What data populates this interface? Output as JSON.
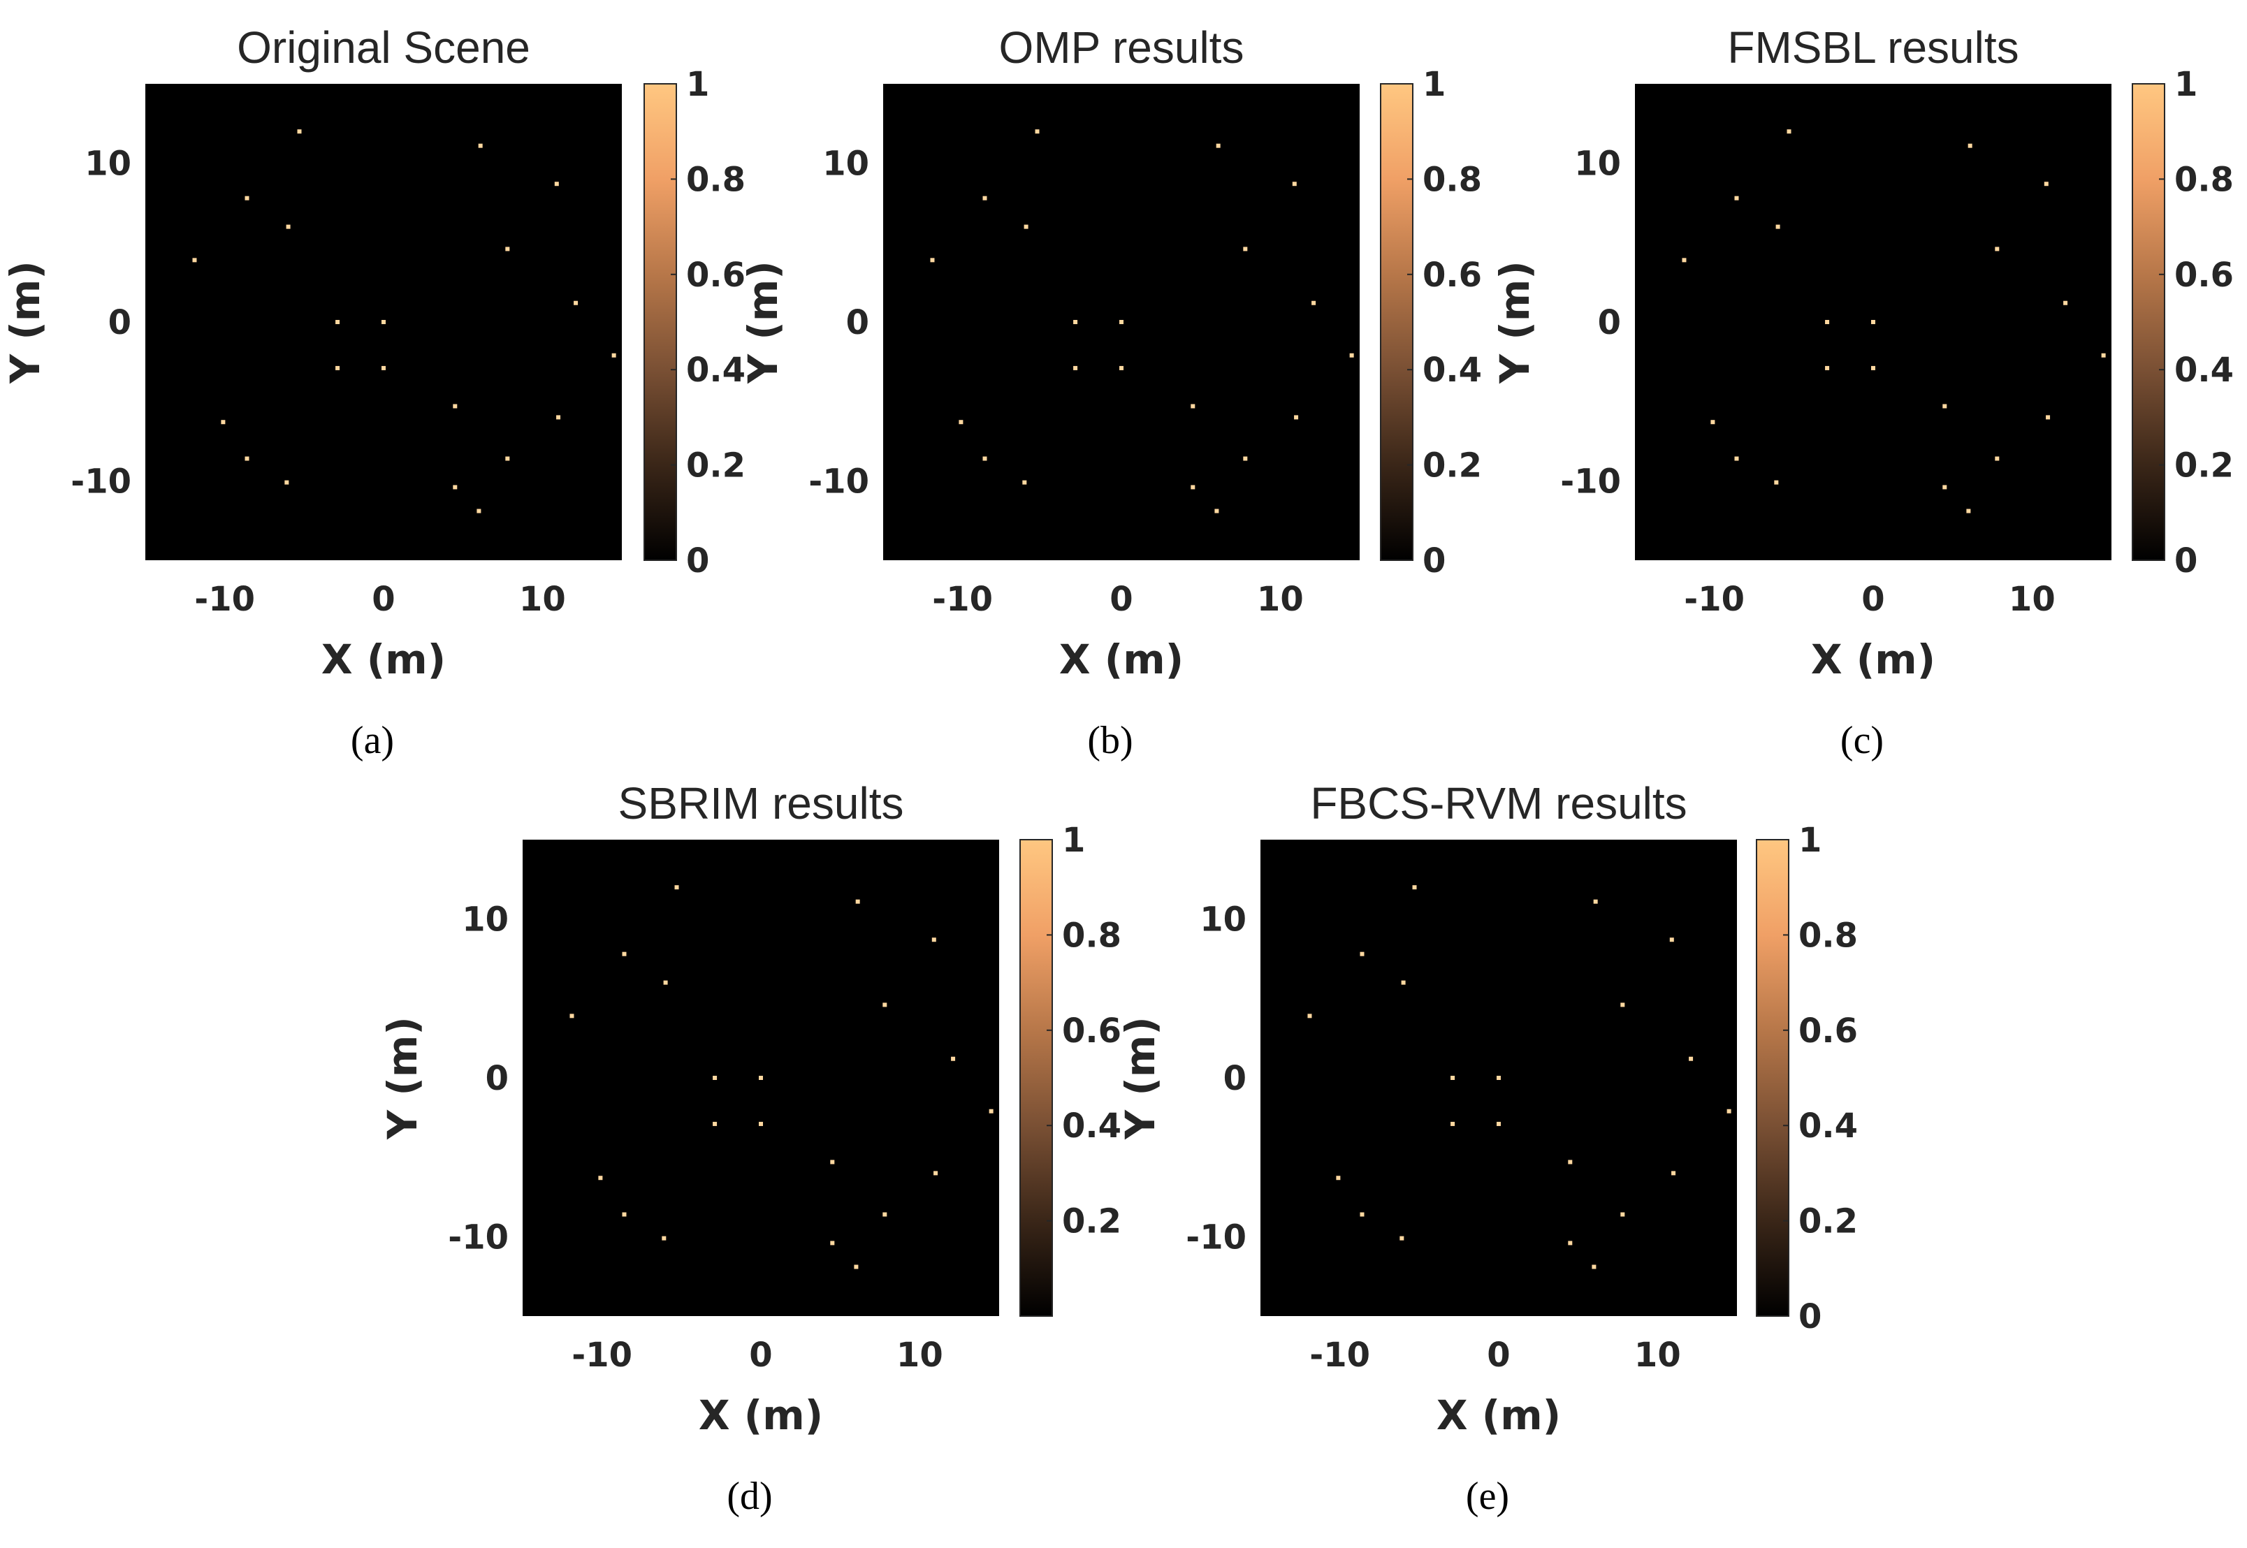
{
  "chart_data": [
    {
      "type": "scatter",
      "panel": "(a)",
      "title": "Original Scene",
      "xlabel": "X (m)",
      "ylabel": "Y (m)",
      "xlim": [
        -15,
        15
      ],
      "ylim": [
        -15,
        15
      ],
      "xticks": [
        "-10",
        "0",
        "10"
      ],
      "yticks": [
        "10",
        "0",
        "-10"
      ],
      "colorbar": {
        "ticks": [
          "1",
          "0.8",
          "0.6",
          "0.4",
          "0.2",
          "0"
        ],
        "range": [
          0,
          1
        ]
      },
      "x": [
        -5.3,
        6.1,
        -8.6,
        10.9,
        -6,
        7.8,
        -11.9,
        12.1,
        -2.9,
        0,
        14.5,
        -2.9,
        0,
        4.5,
        11,
        -10.1,
        -8.6,
        7.8,
        -6.1,
        4.5,
        6
      ],
      "y": [
        12,
        11.1,
        7.8,
        8.7,
        6,
        4.6,
        3.9,
        1.2,
        0,
        0,
        -2.1,
        -2.9,
        -2.9,
        -5.3,
        -6,
        -6.3,
        -8.6,
        -8.6,
        -10.1,
        -10.4,
        -11.9
      ],
      "values": [
        1,
        1,
        1,
        1,
        1,
        1,
        1,
        1,
        1,
        1,
        1,
        1,
        1,
        1,
        1,
        1,
        1,
        1,
        1,
        1,
        1
      ]
    },
    {
      "type": "scatter",
      "panel": "(b)",
      "title": "OMP results",
      "xlabel": "X (m)",
      "ylabel": "Y (m)",
      "xlim": [
        -15,
        15
      ],
      "ylim": [
        -15,
        15
      ],
      "xticks": [
        "-10",
        "0",
        "10"
      ],
      "yticks": [
        "10",
        "0",
        "-10"
      ],
      "colorbar": {
        "ticks": [
          "1",
          "0.8",
          "0.6",
          "0.4",
          "0.2",
          "0"
        ],
        "range": [
          0,
          1
        ]
      },
      "x": [
        -5.3,
        6.1,
        -8.6,
        10.9,
        -6,
        7.8,
        -11.9,
        12.1,
        -2.9,
        0,
        14.5,
        -2.9,
        0,
        4.5,
        11,
        -10.1,
        -8.6,
        7.8,
        -6.1,
        4.5,
        6
      ],
      "y": [
        12,
        11.1,
        7.8,
        8.7,
        6,
        4.6,
        3.9,
        1.2,
        0,
        0,
        -2.1,
        -2.9,
        -2.9,
        -5.3,
        -6,
        -6.3,
        -8.6,
        -8.6,
        -10.1,
        -10.4,
        -11.9
      ],
      "values": [
        1,
        1,
        1,
        1,
        1,
        1,
        1,
        1,
        1,
        1,
        1,
        1,
        1,
        1,
        1,
        1,
        1,
        1,
        1,
        1,
        1
      ]
    },
    {
      "type": "scatter",
      "panel": "(c)",
      "title": "FMSBL results",
      "xlabel": "X (m)",
      "ylabel": "Y (m)",
      "xlim": [
        -15,
        15
      ],
      "ylim": [
        -15,
        15
      ],
      "xticks": [
        "-10",
        "0",
        "10"
      ],
      "yticks": [
        "10",
        "0",
        "-10"
      ],
      "colorbar": {
        "ticks": [
          "1",
          "0.8",
          "0.6",
          "0.4",
          "0.2",
          "0"
        ],
        "range": [
          0,
          1
        ]
      },
      "x": [
        -5.3,
        6.1,
        -8.6,
        10.9,
        -6,
        7.8,
        -11.9,
        12.1,
        -2.9,
        0,
        14.5,
        -2.9,
        0,
        4.5,
        11,
        -10.1,
        -8.6,
        7.8,
        -6.1,
        4.5,
        6
      ],
      "y": [
        12,
        11.1,
        7.8,
        8.7,
        6,
        4.6,
        3.9,
        1.2,
        0,
        0,
        -2.1,
        -2.9,
        -2.9,
        -5.3,
        -6,
        -6.3,
        -8.6,
        -8.6,
        -10.1,
        -10.4,
        -11.9
      ],
      "values": [
        1,
        1,
        1,
        1,
        1,
        1,
        1,
        1,
        1,
        1,
        1,
        1,
        1,
        1,
        1,
        1,
        1,
        1,
        1,
        1,
        1
      ]
    },
    {
      "type": "scatter",
      "panel": "(d)",
      "title": "SBRIM results",
      "xlabel": "X (m)",
      "ylabel": "Y (m)",
      "xlim": [
        -15,
        15
      ],
      "ylim": [
        -15,
        15
      ],
      "xticks": [
        "-10",
        "0",
        "10"
      ],
      "yticks": [
        "10",
        "0",
        "-10"
      ],
      "colorbar": {
        "ticks": [
          "1",
          "0.8",
          "0.6",
          "0.4",
          "0.2"
        ],
        "range": [
          0,
          1
        ]
      },
      "x": [
        -5.3,
        6.1,
        -8.6,
        10.9,
        -6,
        7.8,
        -11.9,
        12.1,
        -2.9,
        0,
        14.5,
        -2.9,
        0,
        4.5,
        11,
        -10.1,
        -8.6,
        7.8,
        -6.1,
        4.5,
        6
      ],
      "y": [
        12,
        11.1,
        7.8,
        8.7,
        6,
        4.6,
        3.9,
        1.2,
        0,
        0,
        -2.1,
        -2.9,
        -2.9,
        -5.3,
        -6,
        -6.3,
        -8.6,
        -8.6,
        -10.1,
        -10.4,
        -11.9
      ],
      "values": [
        1,
        1,
        1,
        1,
        1,
        1,
        1,
        1,
        1,
        1,
        1,
        1,
        1,
        1,
        1,
        1,
        1,
        1,
        1,
        1,
        1
      ]
    },
    {
      "type": "scatter",
      "panel": "(e)",
      "title": "FBCS-RVM results",
      "xlabel": "X (m)",
      "ylabel": "Y (m)",
      "xlim": [
        -15,
        15
      ],
      "ylim": [
        -15,
        15
      ],
      "xticks": [
        "-10",
        "0",
        "10"
      ],
      "yticks": [
        "10",
        "0",
        "-10"
      ],
      "colorbar": {
        "ticks": [
          "1",
          "0.8",
          "0.6",
          "0.4",
          "0.2",
          "0"
        ],
        "range": [
          0,
          1
        ]
      },
      "x": [
        -5.3,
        6.1,
        -8.6,
        10.9,
        -6,
        7.8,
        -11.9,
        12.1,
        -2.9,
        0,
        14.5,
        -2.9,
        0,
        4.5,
        11,
        -10.1,
        -8.6,
        7.8,
        -6.1,
        4.5,
        6
      ],
      "y": [
        12,
        11.1,
        7.8,
        8.7,
        6,
        4.6,
        3.9,
        1.2,
        0,
        0,
        -2.1,
        -2.9,
        -2.9,
        -5.3,
        -6,
        -6.3,
        -8.6,
        -8.6,
        -10.1,
        -10.4,
        -11.9
      ],
      "values": [
        1,
        1,
        1,
        1,
        1,
        1,
        1,
        1,
        1,
        1,
        1,
        1,
        1,
        1,
        1,
        1,
        1,
        1,
        1,
        1,
        1
      ]
    }
  ],
  "colors": {
    "background": "#000000",
    "point": "#FFD8A0",
    "colormap": [
      "#000000",
      "#3a2618",
      "#7a5034",
      "#b77749",
      "#f0a066",
      "#ffc781"
    ]
  }
}
